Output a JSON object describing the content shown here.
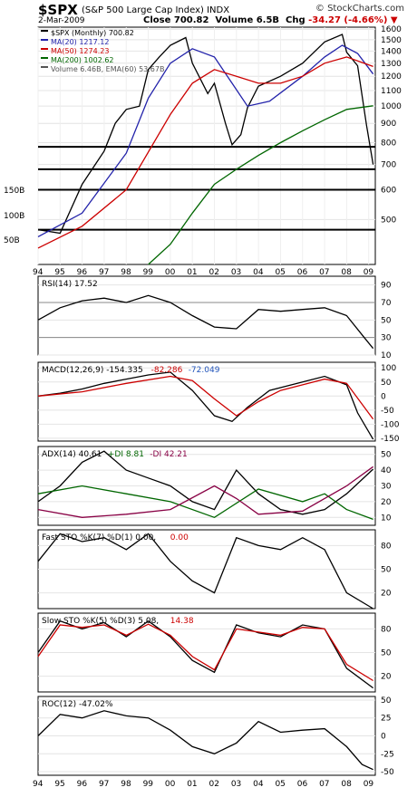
{
  "header": {
    "symbol": "$SPX",
    "name": "(S&P 500 Large Cap Index)",
    "exchange": "INDX",
    "brand": "© StockCharts.com",
    "date": "2-Mar-2009",
    "close_label": "Close",
    "close": "700.82",
    "volume_label": "Volume",
    "volume": "6.5B",
    "chg_label": "Chg",
    "chg": "-34.27 (-4.66%)",
    "down_color": "#aa0000"
  },
  "chart_data": [
    {
      "type": "line",
      "panel": "price",
      "scale": "log",
      "ylim": [
        380,
        1620
      ],
      "x_ticks": [
        "94",
        "95",
        "96",
        "97",
        "98",
        "99",
        "00",
        "01",
        "02",
        "03",
        "04",
        "05",
        "06",
        "07",
        "08",
        "09"
      ],
      "y_ticks": [
        1600,
        1500,
        1400,
        1300,
        1200,
        1100,
        1000,
        900,
        800,
        700,
        600,
        500
      ],
      "volume_ticks": [
        "150B",
        "100B",
        "50B"
      ],
      "legend": [
        {
          "label": "$SPX (Monthly) 700.82",
          "color": "#000000"
        },
        {
          "label": "MA(20) 1217.12",
          "color": "#2222aa"
        },
        {
          "label": "MA(50) 1274.23",
          "color": "#cc0000"
        },
        {
          "label": "MA(200) 1002.62",
          "color": "#006600"
        },
        {
          "label": "Volume 6.46B, EMA(60) 53.67B",
          "color": "#555555"
        }
      ],
      "horizontal_levels": [
        780,
        680,
        600,
        470
      ],
      "series": [
        {
          "name": "$SPX",
          "x": [
            1994,
            1995,
            1996,
            1997,
            1997.5,
            1998,
            1998.6,
            1999,
            1999.5,
            2000,
            2000.7,
            2001,
            2001.7,
            2002,
            2002.5,
            2002.8,
            2003.2,
            2003.5,
            2004,
            2005,
            2006,
            2007,
            2007.8,
            2008,
            2008.5,
            2008.9,
            2009.2
          ],
          "values": [
            470,
            460,
            620,
            760,
            900,
            980,
            1000,
            1250,
            1350,
            1450,
            1520,
            1300,
            1080,
            1150,
            900,
            790,
            840,
            990,
            1130,
            1200,
            1300,
            1480,
            1550,
            1390,
            1280,
            890,
            700
          ]
        },
        {
          "name": "MA(20)",
          "x": [
            1994,
            1996,
            1998,
            1999,
            2000,
            2001,
            2002,
            2002.8,
            2003.5,
            2004.5,
            2006,
            2007,
            2007.8,
            2008.5,
            2009.2
          ],
          "values": [
            450,
            520,
            750,
            1050,
            1300,
            1420,
            1350,
            1150,
            1000,
            1030,
            1200,
            1350,
            1450,
            1380,
            1217
          ]
        },
        {
          "name": "MA(50)",
          "x": [
            1994,
            1996,
            1998,
            2000,
            2001,
            2002,
            2003,
            2004,
            2005,
            2006,
            2007,
            2008,
            2009.2
          ],
          "values": [
            420,
            480,
            600,
            950,
            1150,
            1250,
            1200,
            1150,
            1150,
            1200,
            1300,
            1350,
            1274
          ]
        },
        {
          "name": "MA(200)",
          "x": [
            1999,
            2000,
            2001,
            2002,
            2003,
            2004,
            2005,
            2006,
            2007,
            2008,
            2009.2
          ],
          "values": [
            380,
            430,
            520,
            620,
            680,
            740,
            800,
            860,
            920,
            980,
            1002
          ]
        }
      ]
    },
    {
      "type": "line",
      "panel": "rsi",
      "legend": [
        {
          "label": "RSI(14) 17.52",
          "color": "#000000"
        }
      ],
      "ylim": [
        10,
        100
      ],
      "y_ticks": [
        90,
        70,
        50,
        30,
        10
      ],
      "levels": [
        70,
        30
      ],
      "series": [
        {
          "name": "RSI(14)",
          "x": [
            1994,
            1995,
            1996,
            1997,
            1998,
            1999,
            2000,
            2001,
            2002,
            2003,
            2004,
            2005,
            2006,
            2007,
            2008,
            2008.8,
            2009.2
          ],
          "values": [
            50,
            64,
            72,
            75,
            70,
            78,
            70,
            55,
            42,
            40,
            62,
            60,
            62,
            64,
            55,
            30,
            17.52
          ]
        }
      ]
    },
    {
      "type": "line",
      "panel": "macd",
      "legend": [
        {
          "label": "MACD(12,26,9) -154.335",
          "color": "#000000"
        },
        {
          "label": "-82.286",
          "color": "#cc0000"
        },
        {
          "label": "-72.049",
          "color": "#2255bb"
        }
      ],
      "ylim": [
        -160,
        120
      ],
      "y_ticks": [
        100,
        50,
        0,
        -50,
        -100,
        -150
      ],
      "series": [
        {
          "name": "MACD",
          "x": [
            1994,
            1995,
            1996,
            1997,
            1998,
            1999,
            2000,
            2001,
            2002,
            2002.8,
            2003.5,
            2004.5,
            2006,
            2007,
            2008,
            2008.5,
            2009.2
          ],
          "values": [
            0,
            10,
            25,
            45,
            60,
            75,
            85,
            20,
            -70,
            -90,
            -40,
            20,
            50,
            70,
            40,
            -60,
            -154
          ]
        },
        {
          "name": "Signal",
          "x": [
            1994,
            1996,
            1998,
            2000,
            2001,
            2002,
            2003,
            2004,
            2005,
            2006,
            2007,
            2008,
            2009.2
          ],
          "values": [
            0,
            15,
            45,
            70,
            55,
            -10,
            -70,
            -20,
            20,
            40,
            60,
            45,
            -82
          ]
        }
      ]
    },
    {
      "type": "line",
      "panel": "adx",
      "legend": [
        {
          "label": "ADX(14) 40.61",
          "color": "#000000"
        },
        {
          "label": "+DI 8.81",
          "color": "#006600"
        },
        {
          "label": "-DI 42.21",
          "color": "#880044"
        }
      ],
      "ylim": [
        5,
        55
      ],
      "y_ticks": [
        50,
        40,
        30,
        20,
        10
      ],
      "series": [
        {
          "name": "ADX",
          "x": [
            1994,
            1995,
            1996,
            1997,
            1998,
            1999,
            2000,
            2001,
            2002,
            2003,
            2004,
            2005,
            2006,
            2007,
            2008,
            2009.2
          ],
          "values": [
            20,
            30,
            45,
            52,
            40,
            35,
            30,
            20,
            15,
            40,
            25,
            15,
            12,
            15,
            25,
            40.61
          ]
        },
        {
          "name": "+DI",
          "x": [
            1994,
            1996,
            1998,
            2000,
            2002,
            2004,
            2006,
            2007,
            2008,
            2009.2
          ],
          "values": [
            25,
            30,
            25,
            20,
            10,
            28,
            20,
            25,
            15,
            8.81
          ]
        },
        {
          "name": "-DI",
          "x": [
            1994,
            1996,
            1998,
            2000,
            2002,
            2003,
            2004,
            2006,
            2008,
            2009.2
          ],
          "values": [
            15,
            10,
            12,
            15,
            30,
            22,
            12,
            14,
            30,
            42.21
          ]
        }
      ]
    },
    {
      "type": "line",
      "panel": "fast_sto",
      "legend": [
        {
          "label": "Fast STO %K(7) %D(1) 0.00,",
          "color": "#000000"
        },
        {
          "label": "0.00",
          "color": "#cc0000"
        }
      ],
      "ylim": [
        0,
        100
      ],
      "y_ticks": [
        80,
        50,
        20
      ],
      "series": [
        {
          "name": "%K",
          "x": [
            1994,
            1995,
            1996,
            1997,
            1998,
            1999,
            2000,
            2001,
            2002,
            2003,
            2004,
            2005,
            2006,
            2007,
            2008,
            2009.2
          ],
          "values": [
            60,
            95,
            85,
            90,
            75,
            95,
            60,
            35,
            20,
            90,
            80,
            75,
            90,
            75,
            20,
            0
          ]
        }
      ]
    },
    {
      "type": "line",
      "panel": "slow_sto",
      "legend": [
        {
          "label": "Slow STO %K(5) %D(3) 5.08,",
          "color": "#000000"
        },
        {
          "label": "14.38",
          "color": "#cc0000"
        }
      ],
      "ylim": [
        0,
        100
      ],
      "y_ticks": [
        80,
        50,
        20
      ],
      "series": [
        {
          "name": "%K",
          "x": [
            1994,
            1995,
            1996,
            1997,
            1998,
            1999,
            2000,
            2001,
            2002,
            2003,
            2004,
            2005,
            2006,
            2007,
            2008,
            2009.2
          ],
          "values": [
            50,
            90,
            80,
            88,
            70,
            90,
            70,
            40,
            25,
            85,
            75,
            70,
            85,
            80,
            30,
            5.08
          ]
        },
        {
          "name": "%D",
          "x": [
            1994,
            1995,
            1996,
            1997,
            1998,
            1999,
            2000,
            2001,
            2002,
            2003,
            2004,
            2005,
            2006,
            2007,
            2008,
            2009.2
          ],
          "values": [
            45,
            85,
            82,
            85,
            72,
            86,
            72,
            45,
            28,
            80,
            76,
            72,
            82,
            80,
            35,
            14.38
          ]
        }
      ]
    },
    {
      "type": "line",
      "panel": "roc",
      "legend": [
        {
          "label": "ROC(12) -47.02%",
          "color": "#000000"
        }
      ],
      "ylim": [
        -55,
        55
      ],
      "y_ticks": [
        50,
        25,
        0,
        -25,
        -50
      ],
      "series": [
        {
          "name": "ROC(12)",
          "x": [
            1994,
            1995,
            1996,
            1997,
            1998,
            1999,
            2000,
            2001,
            2002,
            2003,
            2004,
            2005,
            2006,
            2007,
            2008,
            2008.7,
            2009.2
          ],
          "values": [
            0,
            30,
            25,
            35,
            28,
            25,
            8,
            -15,
            -25,
            -10,
            20,
            5,
            8,
            10,
            -15,
            -40,
            -47.02
          ]
        }
      ]
    }
  ]
}
